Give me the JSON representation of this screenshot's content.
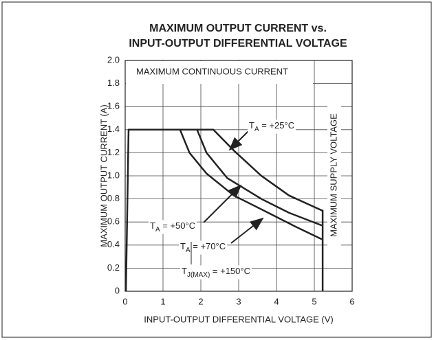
{
  "chart_data": {
    "type": "line",
    "title": [
      "MAXIMUM OUTPUT CURRENT vs.",
      "INPUT-OUTPUT DIFFERENTIAL VOLTAGE"
    ],
    "x_label": "INPUT-OUTPUT DIFFERENTIAL VOLTAGE (V)",
    "y_label": "MAXIMUM OUTPUT CURRENT (A)",
    "xlim": [
      0,
      6
    ],
    "xticks": [
      0,
      1,
      2,
      3,
      4,
      5,
      6
    ],
    "ylim": [
      0,
      2.0
    ],
    "yticks": [
      {
        "value": 0,
        "label": "0"
      },
      0.2,
      0.4,
      0.6,
      0.8,
      {
        "value": 1,
        "label": "1.0"
      },
      1.2,
      1.4,
      1.6,
      1.8,
      {
        "value": 2,
        "label": "2.0"
      }
    ],
    "grid": true,
    "color": "#222222",
    "series": [
      {
        "x": [
          0.02,
          0.09,
          2.33,
          2.87,
          3.6,
          4.33,
          5.2,
          5.22,
          5.22
        ],
        "values": [
          0,
          1.4,
          1.4,
          1.22,
          1.0,
          0.83,
          0.7,
          0.7,
          0
        ]
      },
      {
        "x": [
          1.9,
          2.15,
          2.7,
          3.6,
          4.33,
          5.2
        ],
        "values": [
          1.4,
          1.2,
          0.98,
          0.8,
          0.68,
          0.57
        ]
      },
      {
        "x": [
          1.45,
          1.7,
          2.15,
          2.87,
          3.78,
          4.5,
          5.2
        ],
        "values": [
          1.4,
          1.2,
          1.02,
          0.83,
          0.68,
          0.56,
          0.45
        ]
      }
    ],
    "annotations": [
      {
        "main": "T",
        "sub": "A",
        "rest": " = +25°C"
      },
      {
        "main": "T",
        "sub": "A",
        "rest": " = +50°C"
      },
      {
        "main": "T",
        "sub": "A",
        "rest": " = +70°C"
      },
      {
        "main": "T",
        "sub": "J(MAX)",
        "rest": " = +150°C"
      }
    ],
    "box_label": "MAXIMUM CONTINUOUS CURRENT",
    "side_label": "MAXIMUM SUPPLY VOLTAGE"
  }
}
